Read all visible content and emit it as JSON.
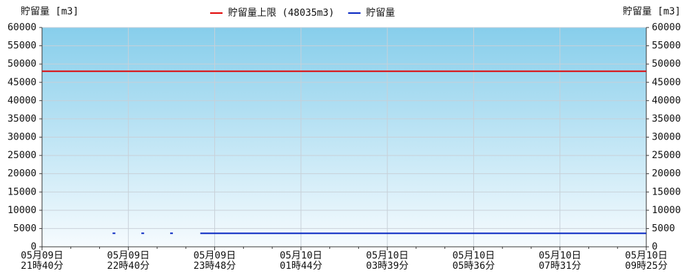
{
  "chart_data": {
    "type": "line",
    "y_label": "貯留量 [m3]",
    "y2_label": "貯留量 [m3]",
    "categories": [
      "05月09日\n21時40分",
      null,
      null,
      null,
      null,
      null,
      "05月09日\n22時40分",
      null,
      null,
      null,
      null,
      null,
      "05月09日\n23時48分",
      null,
      null,
      null,
      null,
      null,
      "05月10日\n01時44分",
      null,
      null,
      null,
      null,
      null,
      "05月10日\n03時39分",
      null,
      null,
      null,
      null,
      null,
      "05月10日\n05時36分",
      null,
      null,
      null,
      null,
      null,
      "05月10日\n07時31分",
      null,
      null,
      null,
      null,
      null,
      "05月10日\n09時25分"
    ],
    "series": [
      {
        "name": "貯留量上限 (48035m3)",
        "color": "#e00000",
        "values": [
          48035,
          48035,
          48035,
          48035,
          48035,
          48035,
          48035,
          48035,
          48035,
          48035,
          48035,
          48035,
          48035,
          48035,
          48035,
          48035,
          48035,
          48035,
          48035,
          48035,
          48035,
          48035,
          48035,
          48035,
          48035,
          48035,
          48035,
          48035,
          48035,
          48035,
          48035,
          48035,
          48035,
          48035,
          48035,
          48035,
          48035,
          48035,
          48035,
          48035,
          48035,
          48035,
          48035
        ]
      },
      {
        "name": "貯留量",
        "color": "#0020c0",
        "values": [
          null,
          null,
          null,
          null,
          null,
          3700,
          null,
          3700,
          null,
          3700,
          null,
          3700,
          3700,
          3700,
          3700,
          3700,
          3700,
          3700,
          3700,
          3700,
          3700,
          3700,
          3700,
          3700,
          3700,
          3700,
          3700,
          3700,
          3700,
          3700,
          3700,
          3700,
          3700,
          3700,
          3700,
          3700,
          3700,
          3700,
          3700,
          3700,
          3700,
          3700,
          3700
        ]
      }
    ],
    "ylim": [
      0,
      60000
    ],
    "yticks": [
      0,
      5000,
      10000,
      15000,
      20000,
      25000,
      30000,
      35000,
      40000,
      45000,
      50000,
      55000,
      60000
    ],
    "y2lim": [
      0,
      60000
    ],
    "y2ticks": [
      0,
      5000,
      10000,
      15000,
      20000,
      25000,
      30000,
      35000,
      40000,
      45000,
      50000,
      55000,
      60000
    ],
    "grid": true
  }
}
